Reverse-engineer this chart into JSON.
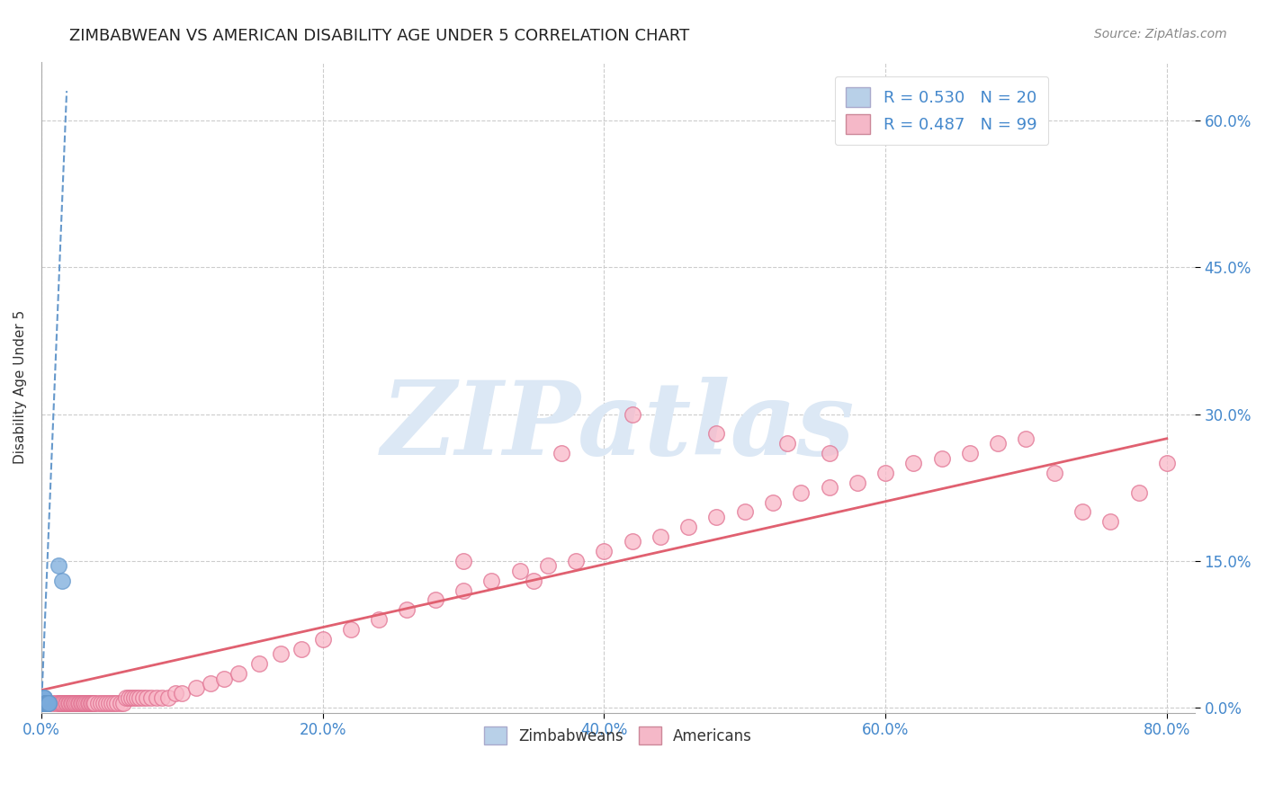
{
  "title": "ZIMBABWEAN VS AMERICAN DISABILITY AGE UNDER 5 CORRELATION CHART",
  "source": "Source: ZipAtlas.com",
  "ylabel": "Disability Age Under 5",
  "xlim": [
    0.0,
    0.82
  ],
  "ylim": [
    -0.005,
    0.66
  ],
  "xlabel_ticks": [
    "0.0%",
    "20.0%",
    "40.0%",
    "60.0%",
    "80.0%"
  ],
  "xlabel_vals": [
    0.0,
    0.2,
    0.4,
    0.6,
    0.8
  ],
  "ylabel_ticks": [
    "0.0%",
    "15.0%",
    "30.0%",
    "45.0%",
    "60.0%"
  ],
  "ylabel_vals": [
    0.0,
    0.15,
    0.3,
    0.45,
    0.6
  ],
  "zimbabwean_R": 0.53,
  "zimbabwean_N": 20,
  "american_R": 0.487,
  "american_N": 99,
  "legend_zim_color": "#b8d0e8",
  "legend_am_color": "#f5b8c8",
  "zim_scatter_color": "#7aabdc",
  "zim_scatter_edgecolor": "#6699cc",
  "am_scatter_color": "#f9b8c8",
  "am_scatter_edgecolor": "#e07090",
  "zim_line_color": "#6699cc",
  "am_line_color": "#e06070",
  "grid_color": "#cccccc",
  "title_color": "#222222",
  "axis_label_color": "#333333",
  "tick_color": "#4488cc",
  "watermark": "ZIPatlas",
  "watermark_color": "#dce8f5",
  "zim_line_x0": 0.0,
  "zim_line_y0": 0.0,
  "zim_line_x1": 0.018,
  "zim_line_y1": 0.63,
  "am_line_x0": 0.0,
  "am_line_y0": 0.018,
  "am_line_x1": 0.8,
  "am_line_y1": 0.275,
  "zimbabwean_x": [
    0.001,
    0.001,
    0.001,
    0.002,
    0.002,
    0.002,
    0.002,
    0.002,
    0.003,
    0.003,
    0.003,
    0.003,
    0.003,
    0.004,
    0.004,
    0.004,
    0.005,
    0.005,
    0.012,
    0.015
  ],
  "zimbabwean_y": [
    0.005,
    0.005,
    0.01,
    0.005,
    0.005,
    0.005,
    0.01,
    0.01,
    0.005,
    0.005,
    0.005,
    0.005,
    0.005,
    0.005,
    0.005,
    0.005,
    0.005,
    0.005,
    0.145,
    0.13
  ],
  "american_x": [
    0.005,
    0.008,
    0.01,
    0.012,
    0.013,
    0.014,
    0.015,
    0.016,
    0.017,
    0.018,
    0.019,
    0.02,
    0.021,
    0.022,
    0.023,
    0.024,
    0.025,
    0.026,
    0.027,
    0.028,
    0.029,
    0.03,
    0.031,
    0.032,
    0.033,
    0.034,
    0.035,
    0.036,
    0.037,
    0.038,
    0.04,
    0.042,
    0.044,
    0.046,
    0.048,
    0.05,
    0.052,
    0.054,
    0.056,
    0.058,
    0.06,
    0.062,
    0.064,
    0.066,
    0.068,
    0.07,
    0.072,
    0.075,
    0.078,
    0.082,
    0.086,
    0.09,
    0.095,
    0.1,
    0.11,
    0.12,
    0.13,
    0.14,
    0.155,
    0.17,
    0.185,
    0.2,
    0.22,
    0.24,
    0.26,
    0.28,
    0.3,
    0.32,
    0.34,
    0.36,
    0.38,
    0.4,
    0.42,
    0.44,
    0.46,
    0.48,
    0.5,
    0.52,
    0.54,
    0.56,
    0.58,
    0.6,
    0.62,
    0.64,
    0.66,
    0.68,
    0.7,
    0.72,
    0.74,
    0.76,
    0.78,
    0.8,
    0.37,
    0.42,
    0.48,
    0.53,
    0.56,
    0.3,
    0.35
  ],
  "american_y": [
    0.005,
    0.005,
    0.005,
    0.005,
    0.005,
    0.005,
    0.005,
    0.005,
    0.005,
    0.005,
    0.005,
    0.005,
    0.005,
    0.005,
    0.005,
    0.005,
    0.005,
    0.005,
    0.005,
    0.005,
    0.005,
    0.005,
    0.005,
    0.005,
    0.005,
    0.005,
    0.005,
    0.005,
    0.005,
    0.005,
    0.005,
    0.005,
    0.005,
    0.005,
    0.005,
    0.005,
    0.005,
    0.005,
    0.005,
    0.005,
    0.01,
    0.01,
    0.01,
    0.01,
    0.01,
    0.01,
    0.01,
    0.01,
    0.01,
    0.01,
    0.01,
    0.01,
    0.015,
    0.015,
    0.02,
    0.025,
    0.03,
    0.035,
    0.045,
    0.055,
    0.06,
    0.07,
    0.08,
    0.09,
    0.1,
    0.11,
    0.12,
    0.13,
    0.14,
    0.145,
    0.15,
    0.16,
    0.17,
    0.175,
    0.185,
    0.195,
    0.2,
    0.21,
    0.22,
    0.225,
    0.23,
    0.24,
    0.25,
    0.255,
    0.26,
    0.27,
    0.275,
    0.24,
    0.2,
    0.19,
    0.22,
    0.25,
    0.26,
    0.3,
    0.28,
    0.27,
    0.26,
    0.15,
    0.13
  ]
}
